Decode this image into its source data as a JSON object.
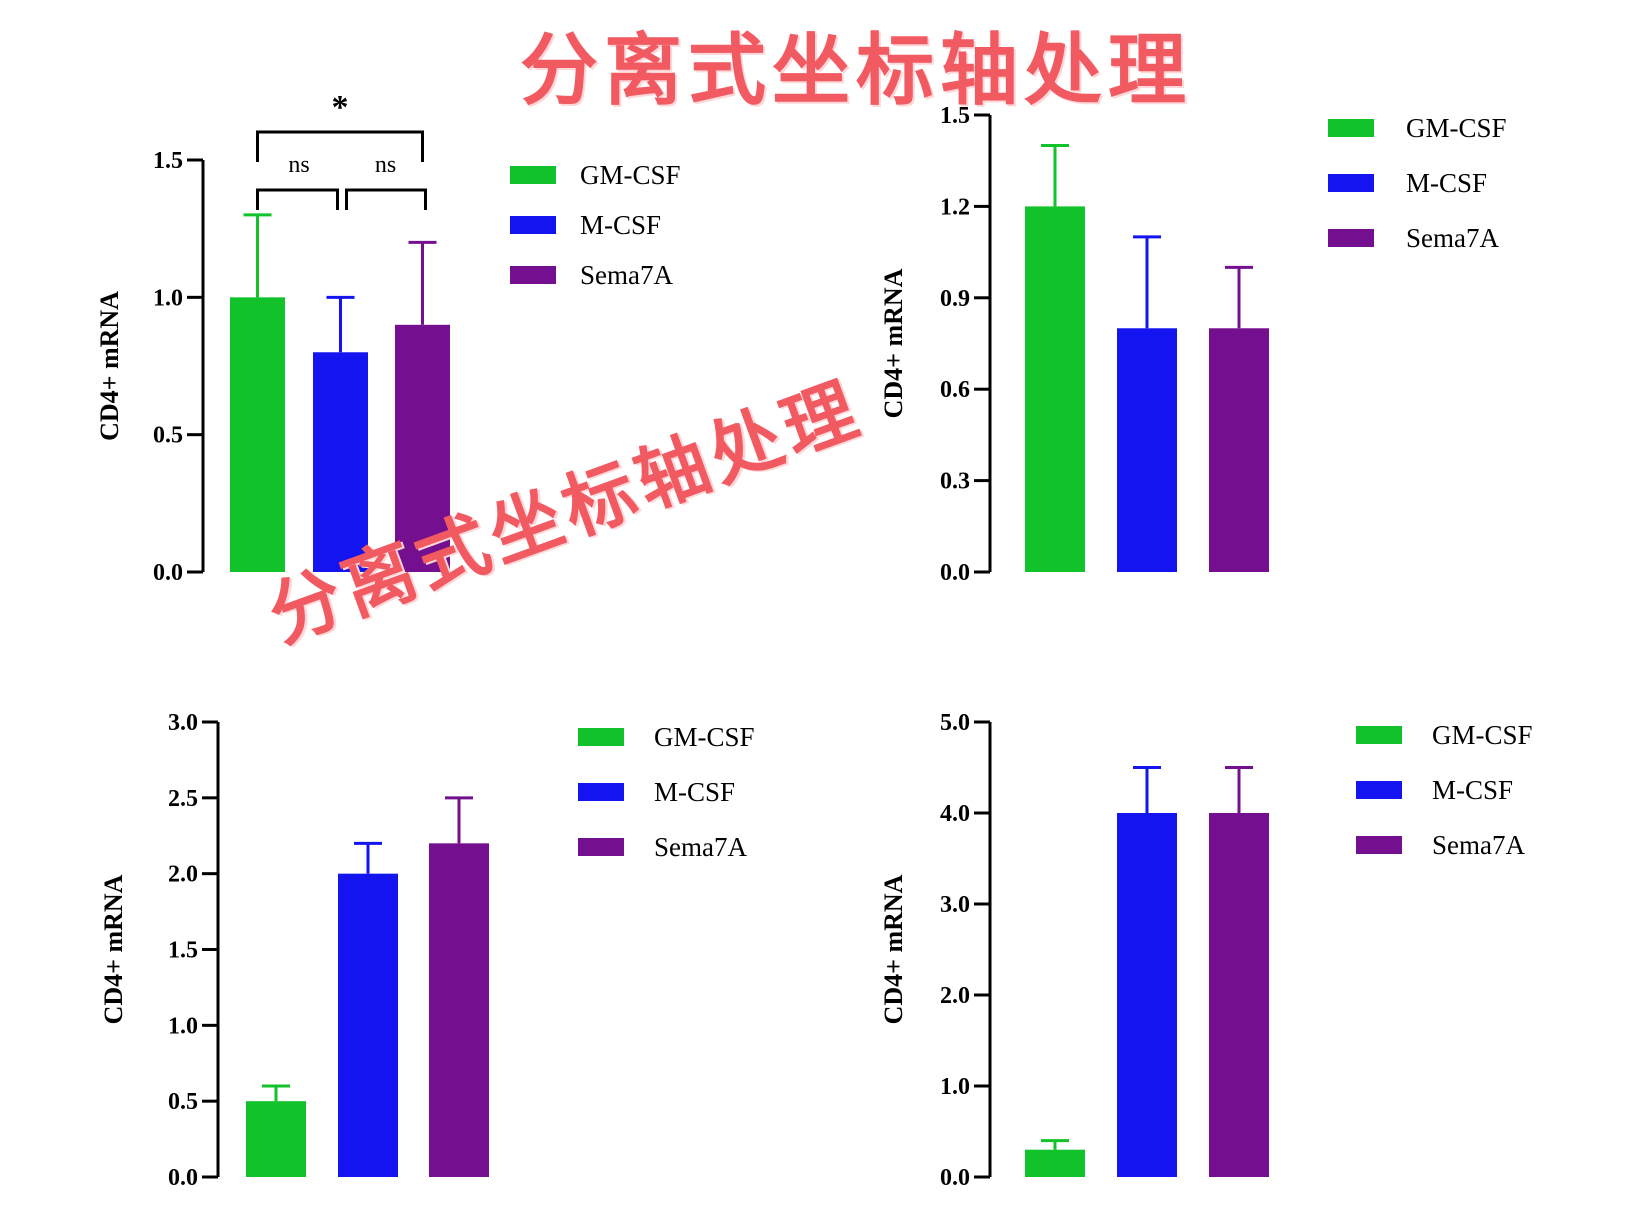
{
  "overlays": {
    "top": "分离式坐标轴处理",
    "middle": "分离式坐标轴处理"
  },
  "colors": {
    "GM-CSF": "#12c22a",
    "M-CSF": "#1414f0",
    "Sema7A": "#74108f"
  },
  "chart_data": [
    {
      "type": "bar",
      "categories": [
        "GM-CSF",
        "M-CSF",
        "Sema7A"
      ],
      "values": [
        1.0,
        0.8,
        0.9
      ],
      "errors": [
        0.3,
        0.2,
        0.3
      ],
      "ylabel": "CD4+ mRNA",
      "ylim": [
        0,
        1.5
      ],
      "yticks": [
        "0.0",
        "0.5",
        "1.0",
        "1.5"
      ],
      "legend": [
        "GM-CSF",
        "M-CSF",
        "Sema7A"
      ],
      "legend_position": "top-right",
      "significance": {
        "overall": "*",
        "pair1": "ns",
        "pair2": "ns"
      }
    },
    {
      "type": "bar",
      "categories": [
        "GM-CSF",
        "M-CSF",
        "Sema7A"
      ],
      "values": [
        1.2,
        0.8,
        0.8
      ],
      "errors": [
        0.2,
        0.3,
        0.2
      ],
      "ylabel": "CD4+ mRNA",
      "ylim": [
        0,
        1.5
      ],
      "yticks": [
        "0.0",
        "0.3",
        "0.6",
        "0.9",
        "1.2",
        "1.5"
      ],
      "legend": [
        "GM-CSF",
        "M-CSF",
        "Sema7A"
      ],
      "legend_position": "top-right"
    },
    {
      "type": "bar",
      "categories": [
        "GM-CSF",
        "M-CSF",
        "Sema7A"
      ],
      "values": [
        0.5,
        2.0,
        2.2
      ],
      "errors": [
        0.1,
        0.2,
        0.3
      ],
      "ylabel": "CD4+ mRNA",
      "ylim": [
        0,
        3.0
      ],
      "yticks": [
        "0.0",
        "0.5",
        "1.0",
        "1.5",
        "2.0",
        "2.5",
        "3.0"
      ],
      "legend": [
        "GM-CSF",
        "M-CSF",
        "Sema7A"
      ],
      "legend_position": "top-right"
    },
    {
      "type": "bar",
      "categories": [
        "GM-CSF",
        "M-CSF",
        "Sema7A"
      ],
      "values": [
        0.3,
        4.0,
        4.0
      ],
      "errors": [
        0.1,
        0.5,
        0.5
      ],
      "ylabel": "CD4+ mRNA",
      "ylim": [
        0,
        5.0
      ],
      "yticks": [
        "0.0",
        "1.0",
        "2.0",
        "3.0",
        "4.0",
        "5.0"
      ],
      "legend": [
        "GM-CSF",
        "M-CSF",
        "Sema7A"
      ],
      "legend_position": "top-right"
    }
  ]
}
